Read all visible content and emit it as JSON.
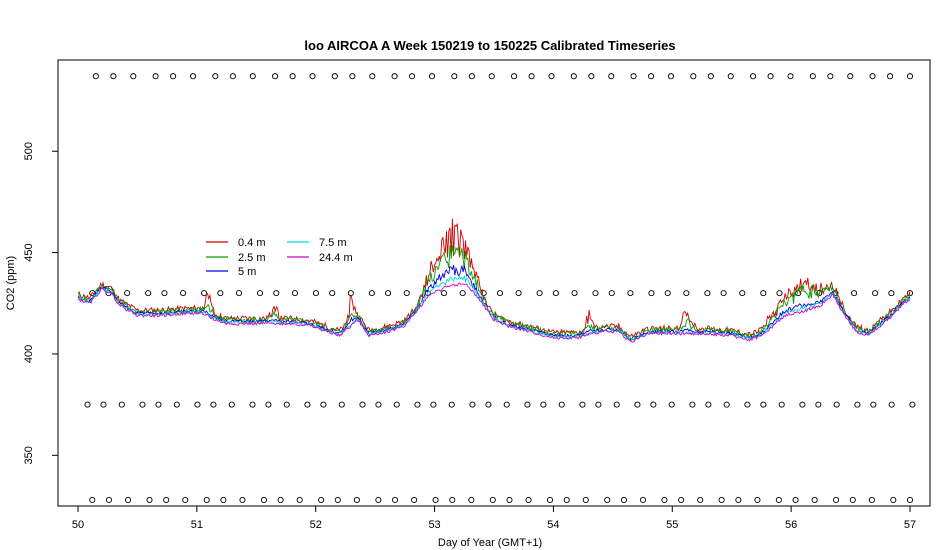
{
  "chart_data": {
    "type": "line",
    "title": "loo AIRCOA A  Week 150219 to 150225  Calibrated Timeseries",
    "xlabel": "Day of Year (GMT+1)",
    "ylabel": "CO2 (ppm)",
    "xlim": [
      50,
      57
    ],
    "ylim": [
      325,
      545
    ],
    "xticks": [
      50,
      51,
      52,
      53,
      54,
      55,
      56,
      57
    ],
    "yticks": [
      350,
      400,
      450,
      500
    ],
    "grid": false,
    "legend_placement": "center-left",
    "series": [
      {
        "name": "0.4 m",
        "color": "#d00000"
      },
      {
        "name": "2.5 m",
        "color": "#00a000"
      },
      {
        "name": "5 m",
        "color": "#0000e0"
      },
      {
        "name": "7.5 m",
        "color": "#00d8d8"
      },
      {
        "name": "24.4 m",
        "color": "#d000d0"
      }
    ],
    "base_curve": [
      [
        50.0,
        428
      ],
      [
        50.1,
        426
      ],
      [
        50.2,
        433
      ],
      [
        50.28,
        431
      ],
      [
        50.35,
        425
      ],
      [
        50.5,
        420
      ],
      [
        50.7,
        420
      ],
      [
        50.9,
        421
      ],
      [
        51.05,
        421
      ],
      [
        51.15,
        418
      ],
      [
        51.25,
        416
      ],
      [
        51.5,
        416
      ],
      [
        51.8,
        416
      ],
      [
        51.95,
        415
      ],
      [
        52.1,
        412
      ],
      [
        52.2,
        410
      ],
      [
        52.3,
        415
      ],
      [
        52.35,
        418
      ],
      [
        52.45,
        410
      ],
      [
        52.6,
        412
      ],
      [
        52.75,
        415
      ],
      [
        52.85,
        422
      ],
      [
        52.95,
        430
      ],
      [
        53.1,
        434
      ],
      [
        53.25,
        436
      ],
      [
        53.32,
        432
      ],
      [
        53.4,
        426
      ],
      [
        53.5,
        418
      ],
      [
        53.6,
        415
      ],
      [
        53.8,
        412
      ],
      [
        54.0,
        409
      ],
      [
        54.2,
        409
      ],
      [
        54.4,
        412
      ],
      [
        54.55,
        412
      ],
      [
        54.65,
        407
      ],
      [
        54.8,
        411
      ],
      [
        55.0,
        411
      ],
      [
        55.3,
        411
      ],
      [
        55.5,
        410
      ],
      [
        55.65,
        408
      ],
      [
        55.75,
        410
      ],
      [
        55.85,
        415
      ],
      [
        55.95,
        420
      ],
      [
        56.1,
        422
      ],
      [
        56.25,
        425
      ],
      [
        56.35,
        430
      ],
      [
        56.45,
        420
      ],
      [
        56.55,
        412
      ],
      [
        56.65,
        410
      ],
      [
        56.75,
        415
      ],
      [
        56.85,
        420
      ],
      [
        56.95,
        426
      ],
      [
        57.0,
        428
      ]
    ],
    "calibration_series": [
      {
        "level": 537,
        "x_start": 50.13,
        "x_end": 57.0,
        "n": 42
      },
      {
        "level": 430,
        "x_start": 50.1,
        "x_end": 57.0,
        "n": 45
      },
      {
        "level": 375,
        "x_start": 50.06,
        "x_end": 57.0,
        "n": 46
      },
      {
        "level": 328,
        "x_start": 50.1,
        "x_end": 57.0,
        "n": 44
      }
    ]
  }
}
